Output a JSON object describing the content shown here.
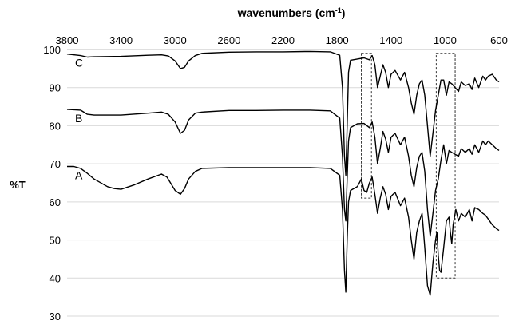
{
  "chart_data": {
    "type": "line",
    "title": "",
    "xlabel": "wavenumbers (cm",
    "xlabel_superscript": "-1",
    "xlabel_close": ")",
    "xlabel_position": "top",
    "ylabel": "%T",
    "xlim": [
      3800,
      600
    ],
    "x_reversed": true,
    "ylim": [
      30,
      100
    ],
    "xticks": [
      3800,
      3400,
      3000,
      2600,
      2200,
      1800,
      1400,
      1000,
      600
    ],
    "yticks": [
      30,
      40,
      50,
      60,
      70,
      80,
      90,
      100
    ],
    "grid": "horizontal",
    "legend": "none",
    "line_color": "#000000",
    "series": [
      {
        "name": "C",
        "points": [
          [
            3800,
            98.8
          ],
          [
            3700,
            98.4
          ],
          [
            3650,
            98.0
          ],
          [
            3600,
            98.1
          ],
          [
            3400,
            98.2
          ],
          [
            3200,
            98.5
          ],
          [
            3100,
            98.6
          ],
          [
            3050,
            98.3
          ],
          [
            3000,
            97.0
          ],
          [
            2960,
            95.0
          ],
          [
            2930,
            95.3
          ],
          [
            2900,
            97.0
          ],
          [
            2850,
            98.4
          ],
          [
            2800,
            99.0
          ],
          [
            2600,
            99.3
          ],
          [
            2400,
            99.4
          ],
          [
            2200,
            99.4
          ],
          [
            2000,
            99.5
          ],
          [
            1850,
            99.4
          ],
          [
            1780,
            98.5
          ],
          [
            1760,
            90.0
          ],
          [
            1745,
            72.0
          ],
          [
            1735,
            67.0
          ],
          [
            1725,
            80.0
          ],
          [
            1715,
            94.0
          ],
          [
            1700,
            97.2
          ],
          [
            1650,
            97.5
          ],
          [
            1600,
            97.8
          ],
          [
            1560,
            97.3
          ],
          [
            1540,
            98.4
          ],
          [
            1520,
            96.0
          ],
          [
            1500,
            90.0
          ],
          [
            1480,
            93.0
          ],
          [
            1460,
            96.0
          ],
          [
            1440,
            94.0
          ],
          [
            1420,
            90.0
          ],
          [
            1400,
            93.5
          ],
          [
            1370,
            94.5
          ],
          [
            1330,
            92.0
          ],
          [
            1300,
            94.0
          ],
          [
            1270,
            90.0
          ],
          [
            1250,
            86.0
          ],
          [
            1230,
            83.0
          ],
          [
            1210,
            88.0
          ],
          [
            1190,
            91.0
          ],
          [
            1170,
            92.0
          ],
          [
            1150,
            88.0
          ],
          [
            1130,
            80.0
          ],
          [
            1110,
            72.0
          ],
          [
            1090,
            78.0
          ],
          [
            1070,
            84.0
          ],
          [
            1050,
            88.0
          ],
          [
            1030,
            92.0
          ],
          [
            1010,
            92.0
          ],
          [
            990,
            88.0
          ],
          [
            970,
            91.5
          ],
          [
            950,
            91.0
          ],
          [
            900,
            89.0
          ],
          [
            880,
            91.5
          ],
          [
            850,
            90.5
          ],
          [
            820,
            91.0
          ],
          [
            800,
            89.5
          ],
          [
            780,
            92.5
          ],
          [
            750,
            90.0
          ],
          [
            720,
            93.0
          ],
          [
            700,
            92.0
          ],
          [
            680,
            93.0
          ],
          [
            650,
            93.5
          ],
          [
            620,
            92.0
          ],
          [
            600,
            91.5
          ]
        ]
      },
      {
        "name": "B",
        "points": [
          [
            3800,
            84.3
          ],
          [
            3700,
            84.1
          ],
          [
            3650,
            83.0
          ],
          [
            3600,
            82.8
          ],
          [
            3400,
            82.8
          ],
          [
            3200,
            83.3
          ],
          [
            3100,
            83.6
          ],
          [
            3050,
            83.0
          ],
          [
            3000,
            81.0
          ],
          [
            2960,
            78.0
          ],
          [
            2930,
            78.8
          ],
          [
            2900,
            81.5
          ],
          [
            2850,
            83.3
          ],
          [
            2800,
            83.6
          ],
          [
            2600,
            84.0
          ],
          [
            2400,
            84.0
          ],
          [
            2200,
            84.1
          ],
          [
            2000,
            84.1
          ],
          [
            1850,
            83.9
          ],
          [
            1780,
            82.0
          ],
          [
            1760,
            72.0
          ],
          [
            1745,
            58.0
          ],
          [
            1735,
            55.0
          ],
          [
            1725,
            66.0
          ],
          [
            1715,
            76.0
          ],
          [
            1700,
            79.5
          ],
          [
            1650,
            80.5
          ],
          [
            1600,
            80.6
          ],
          [
            1560,
            79.5
          ],
          [
            1540,
            81.0
          ],
          [
            1520,
            77.0
          ],
          [
            1500,
            70.0
          ],
          [
            1480,
            74.0
          ],
          [
            1460,
            78.5
          ],
          [
            1440,
            76.5
          ],
          [
            1420,
            73.0
          ],
          [
            1400,
            77.0
          ],
          [
            1370,
            78.0
          ],
          [
            1330,
            75.0
          ],
          [
            1300,
            77.0
          ],
          [
            1270,
            72.0
          ],
          [
            1250,
            67.0
          ],
          [
            1230,
            64.0
          ],
          [
            1210,
            69.0
          ],
          [
            1190,
            72.0
          ],
          [
            1170,
            73.0
          ],
          [
            1150,
            68.0
          ],
          [
            1130,
            58.0
          ],
          [
            1110,
            51.0
          ],
          [
            1090,
            57.0
          ],
          [
            1070,
            63.0
          ],
          [
            1050,
            66.0
          ],
          [
            1030,
            71.0
          ],
          [
            1010,
            75.0
          ],
          [
            990,
            70.0
          ],
          [
            970,
            73.5
          ],
          [
            950,
            73.0
          ],
          [
            900,
            72.0
          ],
          [
            880,
            74.0
          ],
          [
            850,
            73.0
          ],
          [
            820,
            74.0
          ],
          [
            800,
            72.5
          ],
          [
            780,
            75.0
          ],
          [
            750,
            73.0
          ],
          [
            720,
            76.0
          ],
          [
            700,
            75.0
          ],
          [
            680,
            76.0
          ],
          [
            650,
            75.0
          ],
          [
            620,
            74.0
          ],
          [
            600,
            73.5
          ]
        ]
      },
      {
        "name": "A",
        "points": [
          [
            3800,
            69.3
          ],
          [
            3750,
            69.3
          ],
          [
            3700,
            68.8
          ],
          [
            3650,
            67.5
          ],
          [
            3600,
            66.0
          ],
          [
            3500,
            64.0
          ],
          [
            3450,
            63.5
          ],
          [
            3400,
            63.3
          ],
          [
            3300,
            64.5
          ],
          [
            3200,
            66.0
          ],
          [
            3100,
            67.3
          ],
          [
            3060,
            66.5
          ],
          [
            3000,
            63.0
          ],
          [
            2960,
            62.0
          ],
          [
            2930,
            63.5
          ],
          [
            2900,
            66.0
          ],
          [
            2850,
            68.0
          ],
          [
            2800,
            68.8
          ],
          [
            2600,
            69.0
          ],
          [
            2400,
            69.0
          ],
          [
            2200,
            69.0
          ],
          [
            2000,
            69.0
          ],
          [
            1850,
            68.8
          ],
          [
            1780,
            67.0
          ],
          [
            1760,
            58.0
          ],
          [
            1745,
            42.0
          ],
          [
            1735,
            36.3
          ],
          [
            1725,
            50.0
          ],
          [
            1715,
            60.0
          ],
          [
            1700,
            63.0
          ],
          [
            1650,
            64.0
          ],
          [
            1620,
            66.0
          ],
          [
            1600,
            63.0
          ],
          [
            1580,
            62.5
          ],
          [
            1560,
            65.0
          ],
          [
            1540,
            66.5
          ],
          [
            1520,
            62.0
          ],
          [
            1500,
            57.0
          ],
          [
            1480,
            61.0
          ],
          [
            1460,
            64.0
          ],
          [
            1440,
            62.0
          ],
          [
            1420,
            58.0
          ],
          [
            1400,
            61.5
          ],
          [
            1370,
            62.5
          ],
          [
            1330,
            59.0
          ],
          [
            1300,
            61.0
          ],
          [
            1270,
            56.0
          ],
          [
            1250,
            50.0
          ],
          [
            1230,
            45.0
          ],
          [
            1210,
            52.0
          ],
          [
            1190,
            55.0
          ],
          [
            1170,
            57.0
          ],
          [
            1150,
            48.0
          ],
          [
            1130,
            38.0
          ],
          [
            1110,
            35.5
          ],
          [
            1090,
            44.0
          ],
          [
            1070,
            50.0
          ],
          [
            1060,
            52.0
          ],
          [
            1050,
            46.0
          ],
          [
            1040,
            42.0
          ],
          [
            1030,
            41.5
          ],
          [
            1010,
            48.0
          ],
          [
            990,
            55.0
          ],
          [
            970,
            56.0
          ],
          [
            960,
            52.0
          ],
          [
            950,
            49.0
          ],
          [
            940,
            54.0
          ],
          [
            920,
            58.0
          ],
          [
            900,
            55.0
          ],
          [
            880,
            57.0
          ],
          [
            850,
            56.0
          ],
          [
            820,
            58.0
          ],
          [
            800,
            55.0
          ],
          [
            780,
            58.5
          ],
          [
            750,
            58.0
          ],
          [
            720,
            57.0
          ],
          [
            700,
            56.5
          ],
          [
            680,
            55.5
          ],
          [
            650,
            54.0
          ],
          [
            620,
            53.0
          ],
          [
            600,
            52.5
          ]
        ]
      }
    ],
    "highlight_boxes": [
      {
        "x_range": [
          1620,
          1545
        ],
        "y_range": [
          61,
          99
        ]
      },
      {
        "x_range": [
          1065,
          925
        ],
        "y_range": [
          40,
          99
        ]
      }
    ]
  }
}
